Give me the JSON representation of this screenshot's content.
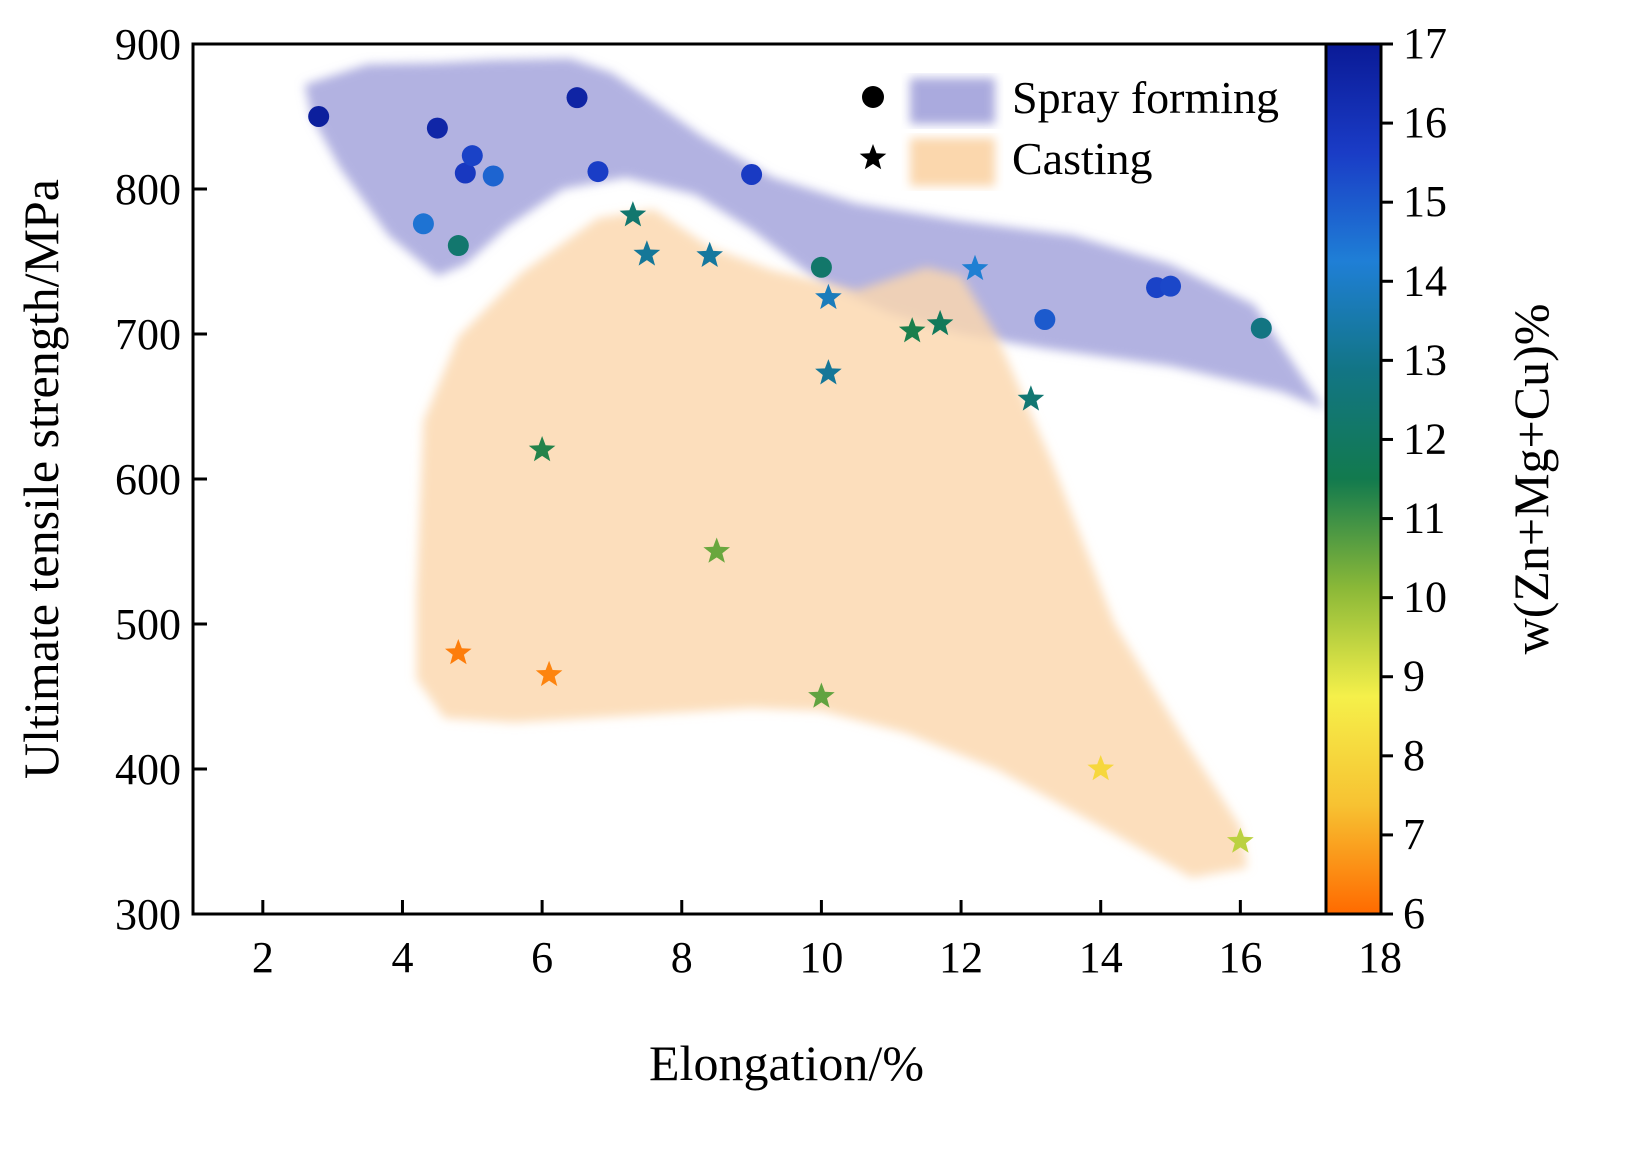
{
  "chart_data": {
    "type": "scatter",
    "xlabel": "Elongation/%",
    "ylabel": "Ultimate tensile strength/MPa",
    "xlim": [
      1,
      18
    ],
    "ylim": [
      300,
      900
    ],
    "xticks": [
      2,
      4,
      6,
      8,
      10,
      12,
      14,
      16,
      18
    ],
    "yticks": [
      300,
      400,
      500,
      600,
      700,
      800,
      900
    ],
    "grid": false,
    "legend_position": "top-right",
    "colorbar": {
      "label": "w(Zn+Mg+Cu)%",
      "range": [
        6,
        17
      ],
      "ticks": [
        6,
        7,
        8,
        9,
        10,
        11,
        12,
        13,
        14,
        15,
        16,
        17
      ],
      "colors": [
        "#ff6a00",
        "#f7c232",
        "#f5f04a",
        "#8ab838",
        "#127a4e",
        "#127585",
        "#1f7fd6",
        "#1a3cc6",
        "#0a1a96"
      ]
    },
    "series": [
      {
        "name": "Spray forming",
        "marker": "circle",
        "region_color": "#aaaade",
        "points": [
          {
            "x": 2.8,
            "y": 850,
            "c": 16.8
          },
          {
            "x": 4.5,
            "y": 842,
            "c": 16.5
          },
          {
            "x": 4.3,
            "y": 776,
            "c": 14.5
          },
          {
            "x": 4.8,
            "y": 761,
            "c": 12.3
          },
          {
            "x": 4.9,
            "y": 811,
            "c": 15.8
          },
          {
            "x": 5.0,
            "y": 823,
            "c": 15.5
          },
          {
            "x": 5.3,
            "y": 809,
            "c": 14.8
          },
          {
            "x": 6.5,
            "y": 863,
            "c": 16.6
          },
          {
            "x": 6.8,
            "y": 812,
            "c": 15.6
          },
          {
            "x": 9.0,
            "y": 810,
            "c": 15.7
          },
          {
            "x": 10.0,
            "y": 746,
            "c": 12.2
          },
          {
            "x": 13.2,
            "y": 710,
            "c": 15.0
          },
          {
            "x": 14.8,
            "y": 732,
            "c": 15.5
          },
          {
            "x": 15.0,
            "y": 733,
            "c": 15.4
          },
          {
            "x": 16.3,
            "y": 704,
            "c": 12.8
          }
        ]
      },
      {
        "name": "Casting",
        "marker": "star",
        "region_color": "#fbd7ad",
        "points": [
          {
            "x": 7.3,
            "y": 782,
            "c": 12.3
          },
          {
            "x": 7.5,
            "y": 755,
            "c": 13.2
          },
          {
            "x": 8.4,
            "y": 754,
            "c": 13.3
          },
          {
            "x": 10.1,
            "y": 725,
            "c": 13.8
          },
          {
            "x": 10.1,
            "y": 673,
            "c": 13.2
          },
          {
            "x": 11.3,
            "y": 702,
            "c": 11.4
          },
          {
            "x": 11.7,
            "y": 707,
            "c": 11.8
          },
          {
            "x": 12.2,
            "y": 745,
            "c": 14.2
          },
          {
            "x": 13.0,
            "y": 655,
            "c": 12.4
          },
          {
            "x": 6.0,
            "y": 620,
            "c": 11.3
          },
          {
            "x": 8.5,
            "y": 550,
            "c": 10.5
          },
          {
            "x": 4.8,
            "y": 480,
            "c": 6.3
          },
          {
            "x": 6.1,
            "y": 465,
            "c": 6.4
          },
          {
            "x": 10.0,
            "y": 450,
            "c": 10.6
          },
          {
            "x": 14.0,
            "y": 400,
            "c": 8.0
          },
          {
            "x": 16.0,
            "y": 350,
            "c": 9.5
          }
        ]
      }
    ]
  }
}
